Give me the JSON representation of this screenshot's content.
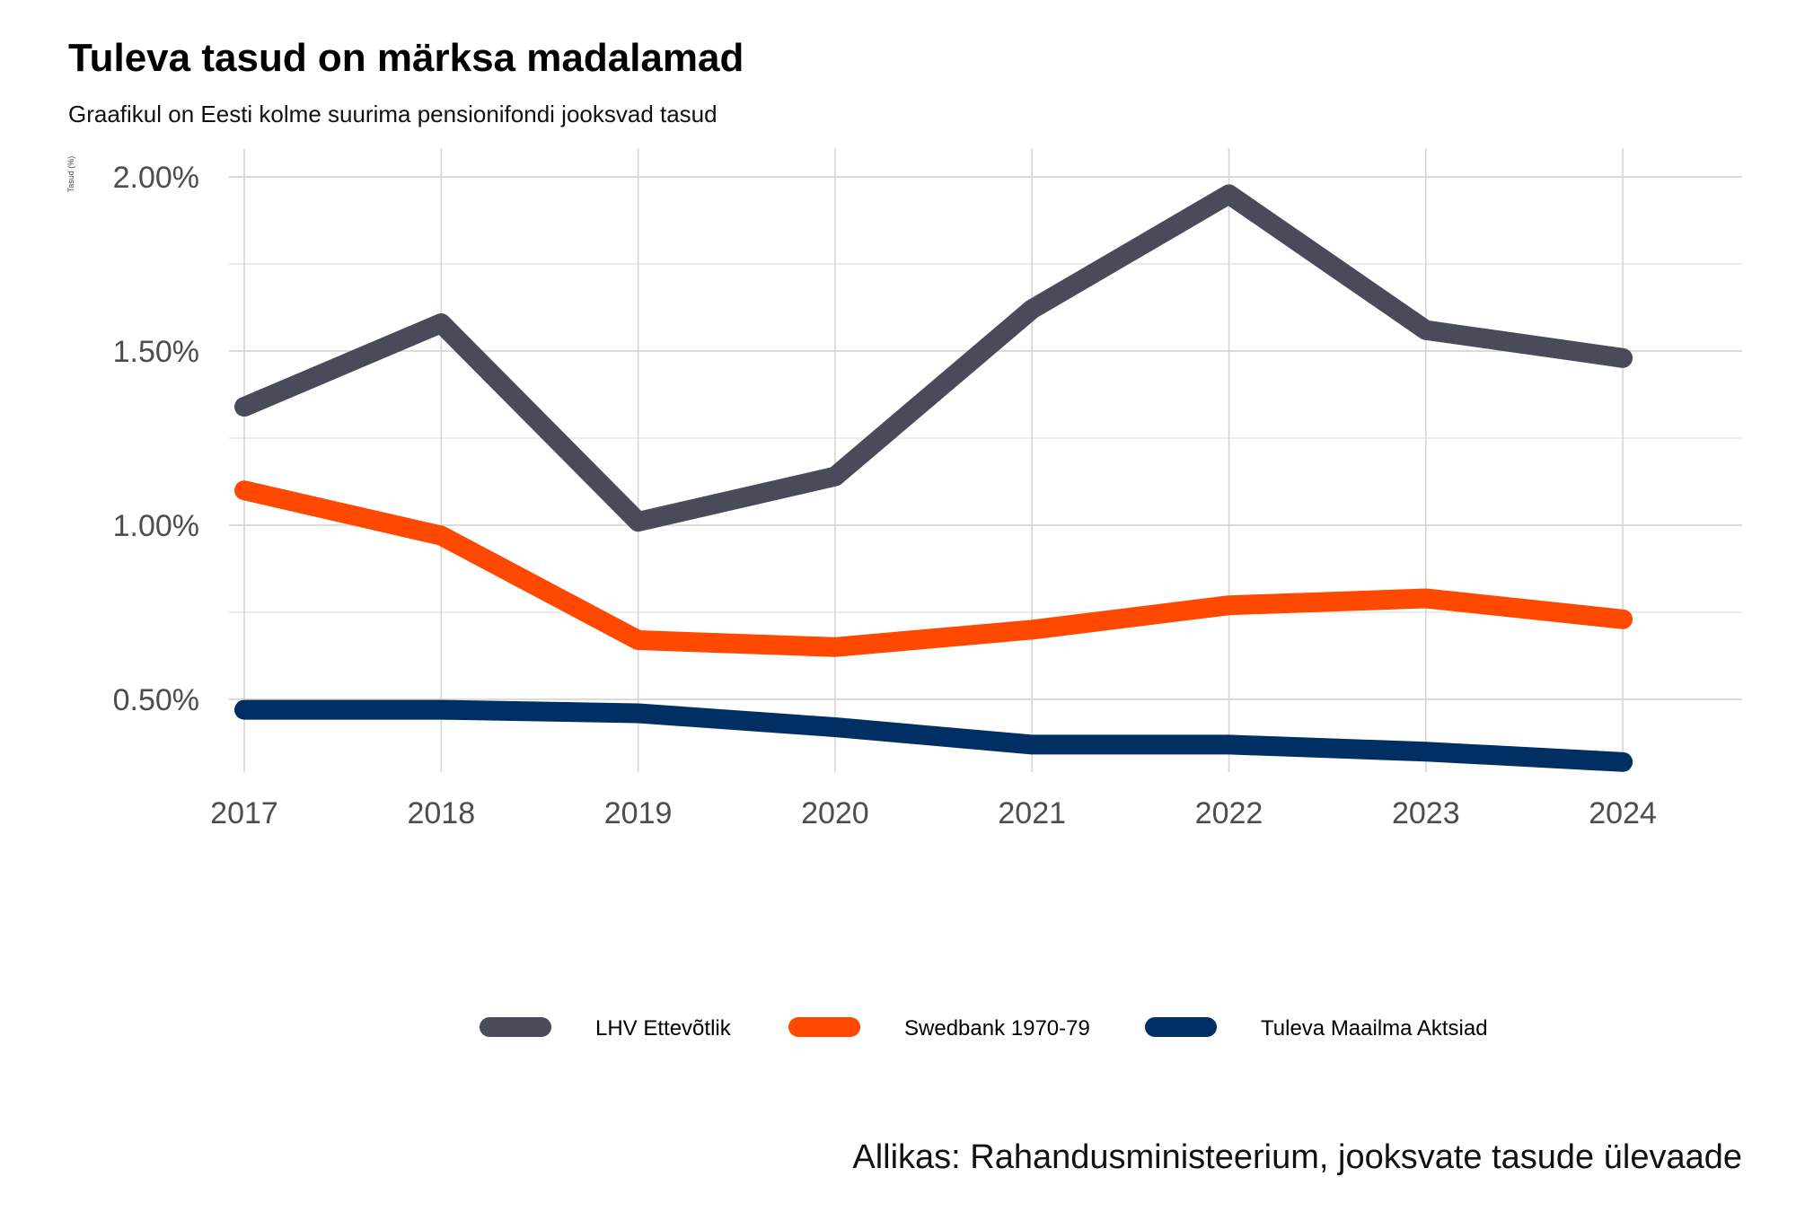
{
  "header": {
    "title": "Tuleva tasud on märksa madalamad",
    "subtitle": "Graafikul on Eesti kolme suurima pensionifondi jooksvad tasud"
  },
  "footer": {
    "source": "Allikas: Rahandusministeerium, jooksvate tasude ülevaade"
  },
  "chart_data": {
    "type": "line",
    "ylabel": "Tasud (%)",
    "xlabel": "",
    "x": [
      2017,
      2018,
      2019,
      2020,
      2021,
      2022,
      2023,
      2024
    ],
    "x_ticks": [
      "2017",
      "2018",
      "2019",
      "2020",
      "2021",
      "2022",
      "2023",
      "2024"
    ],
    "y_ticks": [
      0.5,
      1.0,
      1.5,
      2.0
    ],
    "y_tick_labels": [
      "0.50%",
      "1.00%",
      "1.50%",
      "2.00%"
    ],
    "ylim": [
      0.3,
      2.08
    ],
    "xlim": [
      2017,
      2024.6
    ],
    "grid": true,
    "legend_position": "bottom",
    "series": [
      {
        "name": "LHV Ettevõtlik",
        "color": "#494b5a",
        "values": [
          1.34,
          1.58,
          1.01,
          1.14,
          1.62,
          1.95,
          1.56,
          1.48
        ]
      },
      {
        "name": "Swedbank 1970-79",
        "color": "#ff4800",
        "values": [
          1.1,
          0.97,
          0.67,
          0.65,
          0.7,
          0.77,
          0.79,
          0.73
        ]
      },
      {
        "name": "Tuleva Maailma Aktsiad",
        "color": "#002f63",
        "values": [
          0.47,
          0.47,
          0.46,
          0.42,
          0.37,
          0.37,
          0.35,
          0.32
        ]
      }
    ]
  }
}
